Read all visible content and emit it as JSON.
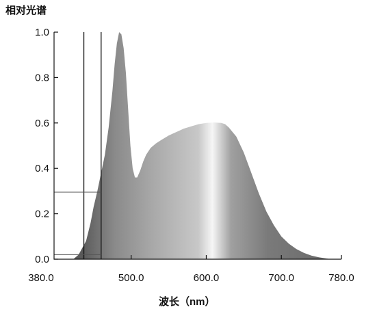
{
  "chart_data": {
    "type": "area",
    "ylabel": "相对光谱",
    "xlabel": "波长（nm）",
    "xlim": [
      380,
      780
    ],
    "ylim": [
      0,
      1.0
    ],
    "x_ticks": [
      380,
      500,
      600,
      700,
      780
    ],
    "x_tick_labels": [
      "380.0",
      "500.0",
      "600.0",
      "700.0",
      "780.0"
    ],
    "y_ticks": [
      0,
      0.2,
      0.4,
      0.6,
      0.8,
      1.0
    ],
    "y_tick_labels": [
      "0.0",
      "0.2",
      "0.4",
      "0.6",
      "0.8",
      "1.0"
    ],
    "grid": false,
    "series": [
      {
        "x": [
          423,
          430,
          440,
          446,
          450,
          455,
          460,
          465,
          470,
          475,
          478,
          481,
          484,
          487,
          490,
          493,
          496,
          499,
          502,
          505,
          508,
          512,
          516,
          520,
          526,
          533,
          540,
          550,
          560,
          570,
          580,
          590,
          600,
          610,
          620,
          625,
          630,
          640,
          650,
          660,
          670,
          680,
          690,
          700,
          710,
          720,
          730,
          740,
          750,
          760,
          766
        ],
        "values": [
          0.0,
          0.02,
          0.08,
          0.16,
          0.23,
          0.3,
          0.38,
          0.46,
          0.58,
          0.74,
          0.86,
          0.95,
          1.0,
          0.99,
          0.93,
          0.82,
          0.66,
          0.5,
          0.4,
          0.36,
          0.36,
          0.39,
          0.43,
          0.46,
          0.49,
          0.51,
          0.525,
          0.545,
          0.56,
          0.575,
          0.585,
          0.595,
          0.6,
          0.602,
          0.6,
          0.595,
          0.58,
          0.54,
          0.47,
          0.38,
          0.29,
          0.21,
          0.15,
          0.1,
          0.068,
          0.045,
          0.028,
          0.016,
          0.008,
          0.003,
          0.0
        ]
      }
    ],
    "reference_lines": {
      "vertical_x": [
        437,
        460
      ],
      "horizontal_y": [
        0.295,
        0.02
      ]
    },
    "colors": {
      "axis": "#111111",
      "fill_dark": "#6a6a6a",
      "fill_light": "#f4f4f4"
    }
  }
}
